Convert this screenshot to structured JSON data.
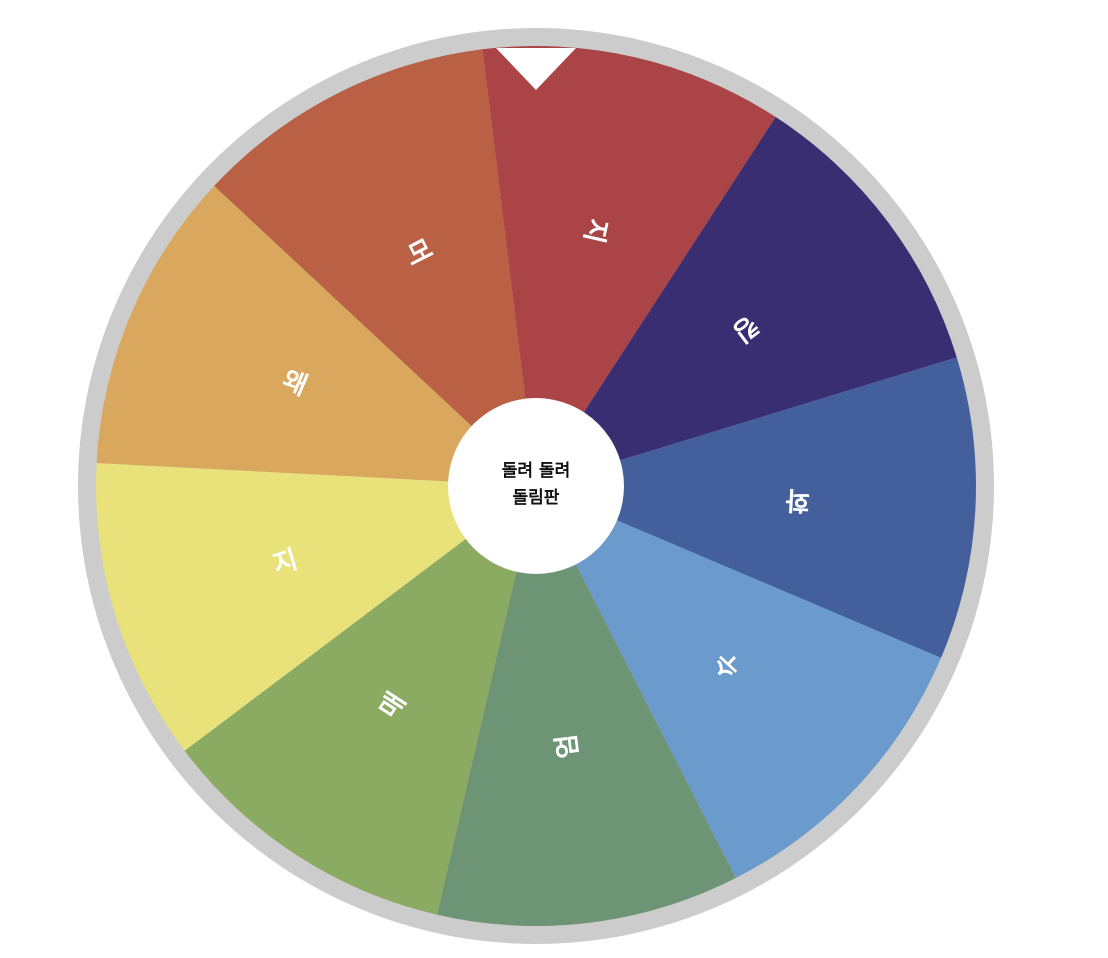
{
  "wheel": {
    "center_button": {
      "line1": "돌려 돌려",
      "line2": "돌림판"
    },
    "rim_color": "#cccccc",
    "pointer_color": "#ffffff",
    "segments": [
      {
        "label": "지",
        "color": "#aa4446"
      },
      {
        "label": "킹",
        "color": "#392e72"
      },
      {
        "label": "화",
        "color": "#44609c"
      },
      {
        "label": "수",
        "color": "#6b9bcc"
      },
      {
        "label": "엄",
        "color": "#6d9474"
      },
      {
        "label": "매",
        "color": "#8cab62"
      },
      {
        "label": "지",
        "color": "#e9e27b"
      },
      {
        "label": "왜",
        "color": "#d9a85e"
      },
      {
        "label": "머",
        "color": "#b96045"
      }
    ]
  }
}
